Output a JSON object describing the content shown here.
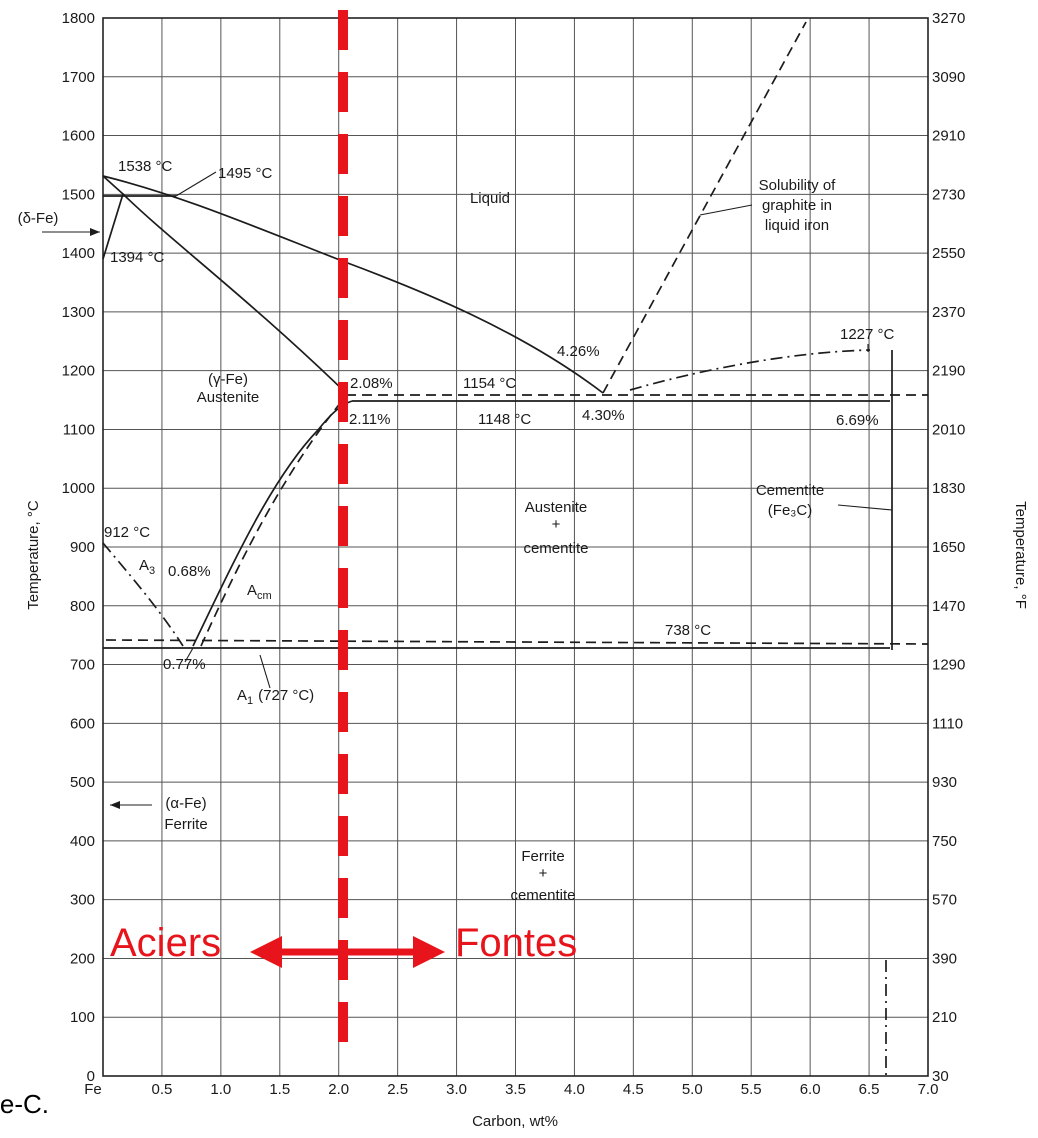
{
  "chart_data": {
    "type": "phase-diagram",
    "xlabel": "Carbon, wt%",
    "ylabel_left": "Temperature, °C",
    "ylabel_right": "Temperature, °F",
    "xlim": [
      0,
      7.0
    ],
    "ylim": [
      0,
      1800
    ],
    "x_ticks": [
      "Fe",
      "0.5",
      "1.0",
      "1.5",
      "2.0",
      "2.5",
      "3.0",
      "3.5",
      "4.0",
      "4.5",
      "5.0",
      "5.5",
      "6.0",
      "6.5",
      "7.0"
    ],
    "y_ticks_left": [
      "0",
      "100",
      "200",
      "300",
      "400",
      "500",
      "600",
      "700",
      "800",
      "900",
      "1000",
      "1100",
      "1200",
      "1300",
      "1400",
      "1500",
      "1600",
      "1700",
      "1800"
    ],
    "y_ticks_right": [
      "30",
      "210",
      "390",
      "570",
      "750",
      "930",
      "1110",
      "1290",
      "1470",
      "1650",
      "1830",
      "2010",
      "2190",
      "2370",
      "2550",
      "2730",
      "2910",
      "3090",
      "3270"
    ],
    "regions": {
      "liquid": "Liquid",
      "austenite_symbol": "(γ-Fe)",
      "austenite": "Austenite",
      "aus_cem_1": "Austenite",
      "aus_cem_2": "+",
      "aus_cem_3": "cementite",
      "fer_cem_1": "Ferrite",
      "fer_cem_2": "+",
      "fer_cem_3": "cementite",
      "ferrite_symbol": "(α-Fe)",
      "ferrite": "Ferrite",
      "cementite": "Cementite",
      "cementite_formula": "(Fe₃C)",
      "delta_fe": "(δ-Fe)",
      "solubility_1": "Solubility of",
      "solubility_2": "graphite in",
      "solubility_3": "liquid iron"
    },
    "annotations": {
      "t1538": "1538 °C",
      "t1495": "1495 °C",
      "t1394": "1394 °C",
      "t1227": "1227 °C",
      "t1154": "1154 °C",
      "t1148": "1148 °C",
      "t912": "912 °C",
      "t738": "738 °C",
      "c208": "2.08%",
      "c211": "2.11%",
      "c426": "4.26%",
      "c430": "4.30%",
      "c669": "6.69%",
      "c068": "0.68%",
      "c077": "0.77%",
      "a3": "A",
      "a3_sub": "3",
      "acm": "A",
      "acm_sub": "cm",
      "a1": "A",
      "a1_sub": "1",
      "a1_temp": "(727 °C)"
    },
    "key_points": [
      {
        "x": 0,
        "y": 1538
      },
      {
        "x": 0.17,
        "y": 1495
      },
      {
        "x": 0,
        "y": 1394
      },
      {
        "x": 2.11,
        "y": 1148
      },
      {
        "x": 4.3,
        "y": 1148
      },
      {
        "x": 6.69,
        "y": 1148
      },
      {
        "x": 0.77,
        "y": 727
      },
      {
        "x": 0,
        "y": 912
      },
      {
        "x": 6.69,
        "y": 1227
      }
    ],
    "boundary_x": 2.08,
    "colors": {
      "boundary": "#e8141c",
      "lines": "#1c1c1c"
    }
  },
  "overlay": {
    "left_label": "Aciers",
    "right_label": "Fontes"
  },
  "caption_fragment": "Fe-C."
}
